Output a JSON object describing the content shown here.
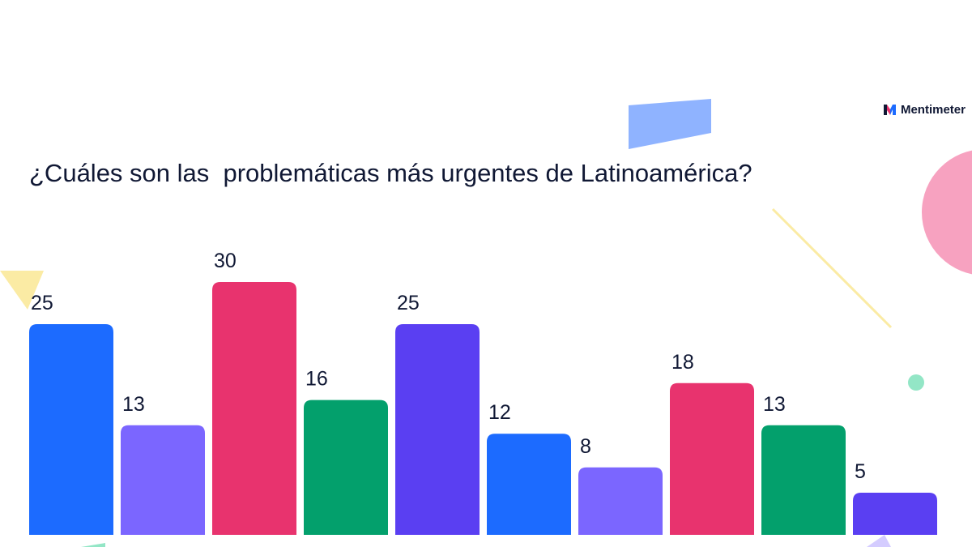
{
  "brand": {
    "name": "Mentimeter",
    "icon": "mentimeter-logo-icon"
  },
  "question": "¿Cuáles son las  problemáticas más urgentes de Latinoamérica?",
  "colors": {
    "blue": "#1c6bff",
    "lavender": "#7b66ff",
    "pink": "#e8336e",
    "green": "#03a06c",
    "violet": "#5a3ff2",
    "text": "#101834",
    "deco_blue": "#8fb3ff",
    "deco_pink": "#f7a2c0",
    "deco_yellow": "#fbeba4",
    "deco_mint": "#93e6c6"
  },
  "chart_data": {
    "type": "bar",
    "categories": [
      "",
      "",
      "",
      "",
      "",
      "",
      "",
      "",
      "",
      ""
    ],
    "values": [
      25,
      13,
      30,
      16,
      25,
      12,
      8,
      18,
      13,
      5
    ],
    "bar_colors": [
      "#1c6bff",
      "#7b66ff",
      "#e8336e",
      "#03a06c",
      "#5a3ff2",
      "#1c6bff",
      "#7b66ff",
      "#e8336e",
      "#03a06c",
      "#5a3ff2"
    ],
    "data_labels": [
      "25",
      "13",
      "30",
      "16",
      "25",
      "12",
      "8",
      "18",
      "13",
      "5"
    ],
    "title": "",
    "xlabel": "",
    "ylabel": "",
    "ylim": [
      0,
      30
    ],
    "grid": false,
    "legend": "none"
  }
}
